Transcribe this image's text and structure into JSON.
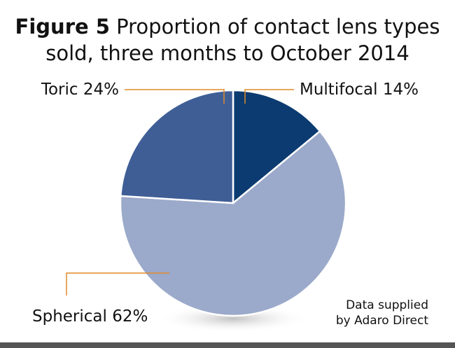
{
  "chart_data": {
    "type": "pie",
    "figure_label": "Figure 5",
    "title": "Proportion of contact lens types",
    "subtitle": "sold, three months to October 2014",
    "categories": [
      "Multifocal",
      "Spherical",
      "Toric"
    ],
    "values": [
      14,
      62,
      24
    ],
    "value_labels": [
      "14%",
      "62%",
      "24%"
    ],
    "colors": [
      "#0b3b70",
      "#9ba9ca",
      "#3f5e96"
    ],
    "source": [
      "Data supplied",
      "by Adaro Direct"
    ]
  }
}
